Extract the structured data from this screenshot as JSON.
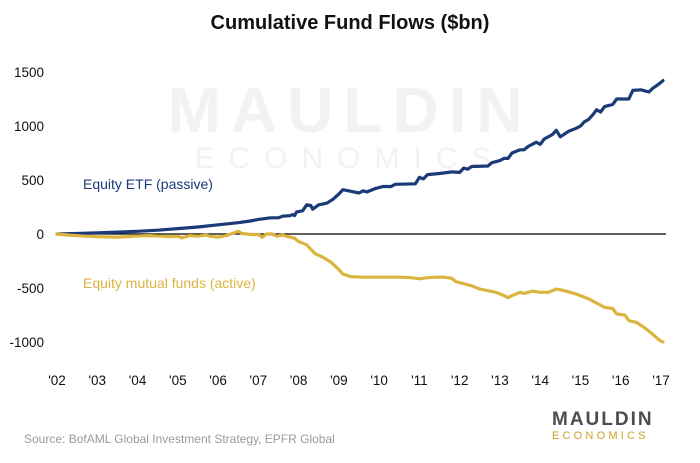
{
  "chart_data": {
    "type": "line",
    "title": "Cumulative Fund Flows ($bn)",
    "xlabel": "",
    "ylabel": "",
    "ylim": [
      -1000,
      1500
    ],
    "xlim": [
      2002,
      2017.05
    ],
    "y_ticks": [
      1500,
      1000,
      500,
      0,
      -500,
      -1000
    ],
    "x_ticks": [
      {
        "value": 2002,
        "label": "'02"
      },
      {
        "value": 2003,
        "label": "'03"
      },
      {
        "value": 2004,
        "label": "'04"
      },
      {
        "value": 2005,
        "label": "'05"
      },
      {
        "value": 2006,
        "label": "'06"
      },
      {
        "value": 2007,
        "label": "'07"
      },
      {
        "value": 2008,
        "label": "'08"
      },
      {
        "value": 2009,
        "label": "'09"
      },
      {
        "value": 2010,
        "label": "'10"
      },
      {
        "value": 2011,
        "label": "'11"
      },
      {
        "value": 2012,
        "label": "'12"
      },
      {
        "value": 2013,
        "label": "'13"
      },
      {
        "value": 2014,
        "label": "'14"
      },
      {
        "value": 2015,
        "label": "'15"
      },
      {
        "value": 2016,
        "label": "'16"
      },
      {
        "value": 2017,
        "label": "'17"
      }
    ],
    "grid": false,
    "series": [
      {
        "name": "Equity ETF (passive)",
        "color": "#1b3a78",
        "points": [
          [
            2002.0,
            0
          ],
          [
            2002.5,
            5
          ],
          [
            2003.0,
            10
          ],
          [
            2003.5,
            18
          ],
          [
            2004.0,
            25
          ],
          [
            2004.5,
            35
          ],
          [
            2005.0,
            50
          ],
          [
            2005.5,
            65
          ],
          [
            2006.0,
            85
          ],
          [
            2006.5,
            105
          ],
          [
            2006.8,
            120
          ],
          [
            2007.0,
            135
          ],
          [
            2007.3,
            150
          ],
          [
            2007.5,
            150
          ],
          [
            2007.6,
            165
          ],
          [
            2007.8,
            170
          ],
          [
            2007.85,
            180
          ],
          [
            2007.9,
            170
          ],
          [
            2007.95,
            205
          ],
          [
            2008.1,
            215
          ],
          [
            2008.2,
            270
          ],
          [
            2008.3,
            265
          ],
          [
            2008.35,
            230
          ],
          [
            2008.5,
            270
          ],
          [
            2008.7,
            285
          ],
          [
            2008.85,
            320
          ],
          [
            2009.0,
            370
          ],
          [
            2009.1,
            410
          ],
          [
            2009.3,
            395
          ],
          [
            2009.5,
            380
          ],
          [
            2009.6,
            400
          ],
          [
            2009.7,
            390
          ],
          [
            2009.9,
            420
          ],
          [
            2010.1,
            440
          ],
          [
            2010.3,
            440
          ],
          [
            2010.4,
            460
          ],
          [
            2010.9,
            465
          ],
          [
            2011.0,
            525
          ],
          [
            2011.1,
            510
          ],
          [
            2011.2,
            550
          ],
          [
            2011.5,
            560
          ],
          [
            2011.8,
            575
          ],
          [
            2012.0,
            570
          ],
          [
            2012.1,
            610
          ],
          [
            2012.2,
            600
          ],
          [
            2012.3,
            625
          ],
          [
            2012.7,
            630
          ],
          [
            2012.8,
            660
          ],
          [
            2013.0,
            680
          ],
          [
            2013.1,
            700
          ],
          [
            2013.2,
            700
          ],
          [
            2013.3,
            750
          ],
          [
            2013.5,
            780
          ],
          [
            2013.6,
            780
          ],
          [
            2013.7,
            810
          ],
          [
            2013.8,
            830
          ],
          [
            2013.9,
            850
          ],
          [
            2014.0,
            830
          ],
          [
            2014.1,
            880
          ],
          [
            2014.3,
            920
          ],
          [
            2014.4,
            960
          ],
          [
            2014.5,
            900
          ],
          [
            2014.7,
            950
          ],
          [
            2014.9,
            980
          ],
          [
            2015.0,
            1000
          ],
          [
            2015.1,
            1040
          ],
          [
            2015.2,
            1060
          ],
          [
            2015.3,
            1100
          ],
          [
            2015.4,
            1150
          ],
          [
            2015.5,
            1130
          ],
          [
            2015.6,
            1180
          ],
          [
            2015.8,
            1200
          ],
          [
            2015.9,
            1250
          ],
          [
            2016.2,
            1250
          ],
          [
            2016.3,
            1330
          ],
          [
            2016.5,
            1335
          ],
          [
            2016.6,
            1325
          ],
          [
            2016.7,
            1315
          ],
          [
            2016.8,
            1350
          ],
          [
            2016.95,
            1390
          ],
          [
            2017.05,
            1420
          ]
        ]
      },
      {
        "name": "Equity mutual funds (active)",
        "color": "#dbb440",
        "points": [
          [
            2002.0,
            0
          ],
          [
            2002.3,
            -10
          ],
          [
            2002.7,
            -20
          ],
          [
            2003.0,
            -25
          ],
          [
            2003.5,
            -30
          ],
          [
            2003.9,
            -20
          ],
          [
            2004.3,
            -15
          ],
          [
            2004.6,
            -20
          ],
          [
            2004.8,
            -25
          ],
          [
            2005.0,
            -20
          ],
          [
            2005.1,
            -35
          ],
          [
            2005.3,
            -15
          ],
          [
            2005.5,
            -20
          ],
          [
            2005.7,
            -10
          ],
          [
            2005.8,
            -20
          ],
          [
            2006.0,
            -30
          ],
          [
            2006.2,
            -15
          ],
          [
            2006.4,
            10
          ],
          [
            2006.5,
            25
          ],
          [
            2006.6,
            5
          ],
          [
            2006.8,
            -5
          ],
          [
            2007.0,
            -5
          ],
          [
            2007.1,
            -30
          ],
          [
            2007.2,
            0
          ],
          [
            2007.35,
            0
          ],
          [
            2007.45,
            -20
          ],
          [
            2007.6,
            -10
          ],
          [
            2007.7,
            -20
          ],
          [
            2007.8,
            -30
          ],
          [
            2007.9,
            -40
          ],
          [
            2008.0,
            -70
          ],
          [
            2008.2,
            -100
          ],
          [
            2008.4,
            -180
          ],
          [
            2008.6,
            -215
          ],
          [
            2008.8,
            -260
          ],
          [
            2009.0,
            -330
          ],
          [
            2009.1,
            -370
          ],
          [
            2009.3,
            -395
          ],
          [
            2009.6,
            -400
          ],
          [
            2010.0,
            -400
          ],
          [
            2010.5,
            -400
          ],
          [
            2010.8,
            -405
          ],
          [
            2011.0,
            -415
          ],
          [
            2011.2,
            -405
          ],
          [
            2011.4,
            -400
          ],
          [
            2011.6,
            -400
          ],
          [
            2011.8,
            -410
          ],
          [
            2011.9,
            -440
          ],
          [
            2012.1,
            -460
          ],
          [
            2012.3,
            -480
          ],
          [
            2012.5,
            -510
          ],
          [
            2012.7,
            -525
          ],
          [
            2012.9,
            -540
          ],
          [
            2013.0,
            -555
          ],
          [
            2013.1,
            -570
          ],
          [
            2013.2,
            -590
          ],
          [
            2013.3,
            -570
          ],
          [
            2013.5,
            -540
          ],
          [
            2013.6,
            -550
          ],
          [
            2013.7,
            -540
          ],
          [
            2013.8,
            -530
          ],
          [
            2014.0,
            -540
          ],
          [
            2014.2,
            -540
          ],
          [
            2014.4,
            -510
          ],
          [
            2014.6,
            -525
          ],
          [
            2014.8,
            -545
          ],
          [
            2015.0,
            -570
          ],
          [
            2015.2,
            -600
          ],
          [
            2015.4,
            -640
          ],
          [
            2015.6,
            -680
          ],
          [
            2015.8,
            -690
          ],
          [
            2015.9,
            -740
          ],
          [
            2016.1,
            -750
          ],
          [
            2016.2,
            -800
          ],
          [
            2016.4,
            -820
          ],
          [
            2016.6,
            -870
          ],
          [
            2016.8,
            -930
          ],
          [
            2016.95,
            -980
          ],
          [
            2017.05,
            -1000
          ]
        ]
      }
    ]
  },
  "source_text": "Source: BofAML Global Investment Strategy, EPFR Global",
  "logo": {
    "top": "MAULDIN",
    "bottom": "ECONOMICS"
  },
  "colors": {
    "etf": "#1b3a78",
    "mutual": "#dbb440",
    "axis": "#000000",
    "source": "#9a9a9a"
  }
}
